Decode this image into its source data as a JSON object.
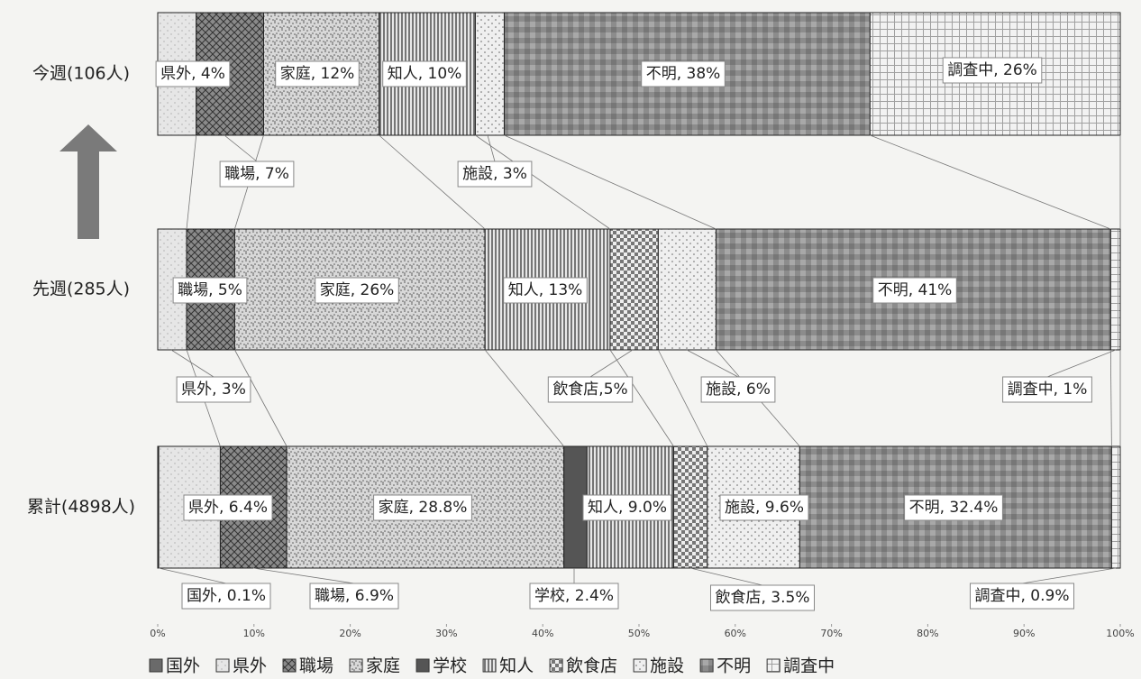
{
  "chart_data": {
    "type": "stacked_bar_horizontal",
    "categories": [
      "今週(106人)",
      "先週(285人)",
      "累計(4898人)"
    ],
    "xlim": [
      0,
      100
    ],
    "xticks": [
      {
        "value": 0,
        "label": "0%"
      },
      {
        "value": 10,
        "label": "10%"
      },
      {
        "value": 20,
        "label": "20%"
      },
      {
        "value": 30,
        "label": "30%"
      },
      {
        "value": 40,
        "label": "40%"
      },
      {
        "value": 50,
        "label": "50%"
      },
      {
        "value": 60,
        "label": "60%"
      },
      {
        "value": 70,
        "label": "70%"
      },
      {
        "value": 80,
        "label": "80%"
      },
      {
        "value": 90,
        "label": "90%"
      },
      {
        "value": 100,
        "label": "100%"
      }
    ],
    "series": [
      {
        "name": "国外",
        "color": "#6a6a6a",
        "pattern": "solid",
        "values": [
          null,
          null,
          0.1
        ],
        "value_labels": [
          null,
          null,
          "国外, 0.1%"
        ]
      },
      {
        "name": "県外",
        "color": "#bdbdbd",
        "pattern": "dots",
        "values": [
          4,
          3,
          6.4
        ],
        "value_labels": [
          "県外, 4%",
          "県外, 3%",
          "県外, 6.4%"
        ]
      },
      {
        "name": "職場",
        "color": "#8a8a8a",
        "pattern": "cross",
        "values": [
          7,
          5,
          6.9
        ],
        "value_labels": [
          "職場, 7%",
          "職場, 5%",
          "職場, 6.9%"
        ]
      },
      {
        "name": "家庭",
        "color": "#9a9a9a",
        "pattern": "stipple",
        "values": [
          12,
          26,
          28.8
        ],
        "value_labels": [
          "家庭, 12%",
          "家庭, 26%",
          "家庭, 28.8%"
        ]
      },
      {
        "name": "学校",
        "color": "#555555",
        "pattern": "solid",
        "values": [
          null,
          null,
          2.4
        ],
        "value_labels": [
          null,
          null,
          "学校, 2.4%"
        ]
      },
      {
        "name": "知人",
        "color": "#777777",
        "pattern": "vlines",
        "values": [
          10,
          13,
          9.0
        ],
        "value_labels": [
          "知人, 10%",
          "知人, 13%",
          "知人, 9.0%"
        ]
      },
      {
        "name": "飲食店",
        "color": "#777777",
        "pattern": "diamond",
        "values": [
          null,
          5,
          3.5
        ],
        "value_labels": [
          null,
          "飲食店,5%",
          "飲食店, 3.5%"
        ]
      },
      {
        "name": "施設",
        "color": "#9a9a9a",
        "pattern": "sparse",
        "values": [
          3,
          6,
          9.6
        ],
        "value_labels": [
          "施設, 3%",
          "施設, 6%",
          "施設, 9.6%"
        ]
      },
      {
        "name": "不明",
        "color": "#8c8c8c",
        "pattern": "mottled",
        "values": [
          38,
          41,
          32.4
        ],
        "value_labels": [
          "不明, 38%",
          "不明, 41%",
          "不明, 32.4%"
        ]
      },
      {
        "name": "調査中",
        "color": "#a0a0a0",
        "pattern": "grid",
        "values": [
          26,
          1,
          0.9
        ],
        "value_labels": [
          "調査中, 26%",
          "調査中, 1%",
          "調査中, 0.9%"
        ]
      }
    ]
  }
}
